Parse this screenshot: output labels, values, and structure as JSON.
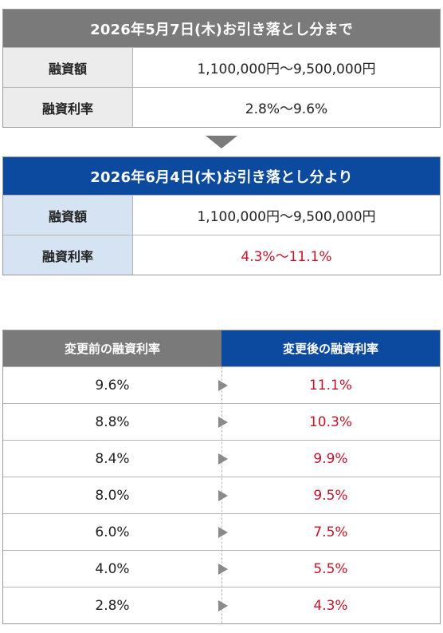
{
  "current_terms": {
    "heading": "2026年5月7日(木)お引き落とし分まで",
    "rows": [
      {
        "label": "融資額",
        "value": "1,100,000円〜9,500,000円"
      },
      {
        "label": "融資利率",
        "value": "2.8%〜9.6%"
      }
    ]
  },
  "new_terms": {
    "heading": "2026年6月4日(木)お引き落とし分より",
    "rows": [
      {
        "label": "融資額",
        "value": "1,100,000円〜9,500,000円"
      },
      {
        "label": "融資利率",
        "value": "4.3%〜11.1%"
      }
    ]
  },
  "comparison": {
    "headers": {
      "before": "変更前の融資利率",
      "after": "変更後の融資利率"
    },
    "rows": [
      {
        "before": "9.6%",
        "after": "11.1%"
      },
      {
        "before": "8.8%",
        "after": "10.3%"
      },
      {
        "before": "8.4%",
        "after": "9.9%"
      },
      {
        "before": "8.0%",
        "after": "9.5%"
      },
      {
        "before": "6.0%",
        "after": "7.5%"
      },
      {
        "before": "4.0%",
        "after": "5.5%"
      },
      {
        "before": "2.8%",
        "after": "4.3%"
      }
    ]
  },
  "colors": {
    "old_header": "#7a7a7a",
    "new_header": "#0b4a9e",
    "new_label_bg": "#d5e3f3",
    "highlight_red": "#c0142b"
  },
  "icons": {
    "transition": "down-triangle-icon",
    "row_arrow": "right-triangle-icon"
  }
}
